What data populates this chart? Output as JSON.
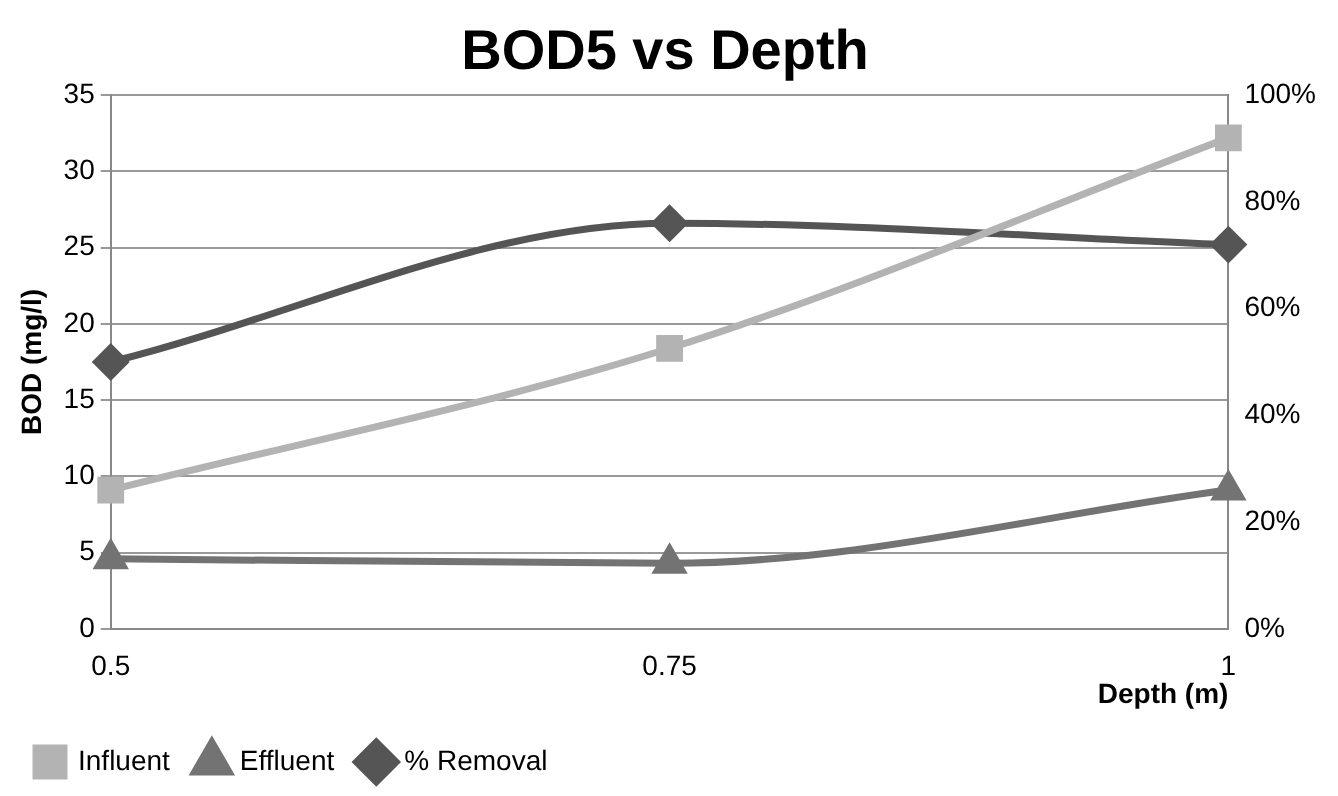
{
  "chart_data": {
    "type": "line",
    "title": "BOD5 vs Depth",
    "xlabel": "Depth (m)",
    "ylabel": "BOD (mg/l)",
    "categories": [
      "0.5",
      "0.75",
      "1"
    ],
    "series": [
      {
        "name": "Influent",
        "color": "#b3b3b3",
        "marker": "square",
        "values": [
          9.1,
          18.4,
          32.2
        ]
      },
      {
        "name": "Effluent",
        "color": "#737373",
        "marker": "triangle",
        "values": [
          4.6,
          4.3,
          9.1
        ]
      },
      {
        "name": "% Removal",
        "color": "#555555",
        "marker": "diamond",
        "axis": "y2",
        "values": [
          50,
          76,
          72
        ]
      }
    ],
    "ylim": [
      0,
      35
    ],
    "yticks": [
      0,
      5,
      10,
      15,
      20,
      25,
      30,
      35
    ],
    "y2lim": [
      0,
      100
    ],
    "y2ticks": [
      {
        "value": 0,
        "label": "0%"
      },
      {
        "value": 20,
        "label": "20%"
      },
      {
        "value": 40,
        "label": "40%"
      },
      {
        "value": 60,
        "label": "60%"
      },
      {
        "value": 80,
        "label": "80%"
      },
      {
        "value": 100,
        "label": "100%"
      }
    ],
    "grid": "y",
    "legend": "bottom left"
  }
}
